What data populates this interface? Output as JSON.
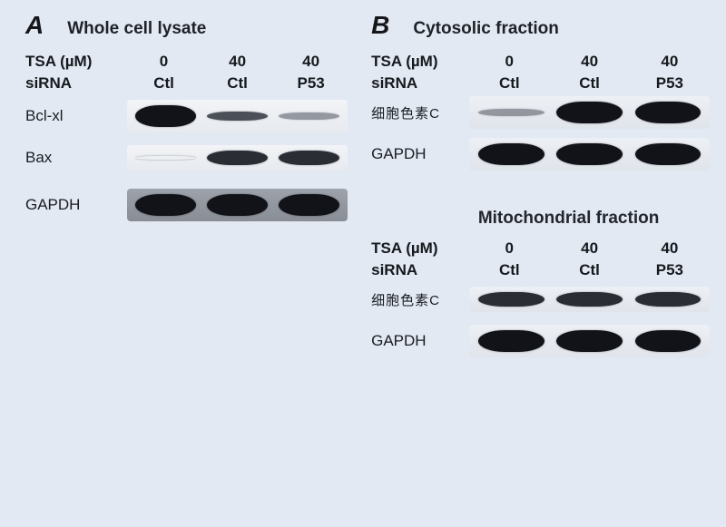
{
  "panels": {
    "A": {
      "letter": "A",
      "title": "Whole cell lysate",
      "conditions": [
        {
          "label": "TSA (µM)",
          "values": [
            "0",
            "40",
            "40"
          ]
        },
        {
          "label": "siRNA",
          "values": [
            "Ctl",
            "Ctl",
            "P53"
          ]
        }
      ],
      "rows": [
        {
          "label": "Bcl-xl",
          "bands": [
            "strong",
            "weak",
            "faint"
          ],
          "strip": "light",
          "height": "med"
        },
        {
          "label": "Bax",
          "bands": [
            "none",
            "medium",
            "medium"
          ],
          "strip": "light",
          "height": ""
        },
        {
          "label": "GAPDH",
          "bands": [
            "strong",
            "strong",
            "strong"
          ],
          "strip": "film",
          "height": "tall"
        }
      ]
    },
    "B": {
      "letter": "B",
      "sections": [
        {
          "title": "Cytosolic fraction",
          "conditions": [
            {
              "label": "TSA (µM)",
              "values": [
                "0",
                "40",
                "40"
              ]
            },
            {
              "label": "siRNA",
              "values": [
                "Ctl",
                "Ctl",
                "P53"
              ]
            }
          ],
          "rows": [
            {
              "label": "细胞色素C",
              "label_cjk": true,
              "bands": [
                "faint",
                "strong",
                "strong"
              ],
              "strip": "pale",
              "height": ""
            },
            {
              "label": "GAPDH",
              "bands": [
                "strong",
                "strong",
                "strong"
              ],
              "strip": "pale",
              "height": "med"
            }
          ]
        },
        {
          "title": "Mitochondrial fraction",
          "conditions": [
            {
              "label": "TSA (µM)",
              "values": [
                "0",
                "40",
                "40"
              ]
            },
            {
              "label": "siRNA",
              "values": [
                "Ctl",
                "Ctl",
                "P53"
              ]
            }
          ],
          "rows": [
            {
              "label": "细胞色素C",
              "label_cjk": true,
              "bands": [
                "medium",
                "medium",
                "medium"
              ],
              "strip": "pale",
              "height": ""
            },
            {
              "label": "GAPDH",
              "bands": [
                "strong",
                "strong",
                "strong"
              ],
              "strip": "pale",
              "height": "med"
            }
          ]
        }
      ]
    }
  },
  "style": {
    "background": "#e2e9f3",
    "text_color": "#121417",
    "label_fontsize_pt": 13,
    "letter_fontsize_pt": 21,
    "title_fontsize_pt": 15,
    "band_colors": {
      "strong": "#121318",
      "medium": "#2a2d34",
      "weak": "#3a3e47",
      "faint": "#5a5f6a"
    },
    "strip_colors": {
      "light": "#e7eaef",
      "film": "#888d96",
      "pale": "#e0e4eb"
    }
  }
}
